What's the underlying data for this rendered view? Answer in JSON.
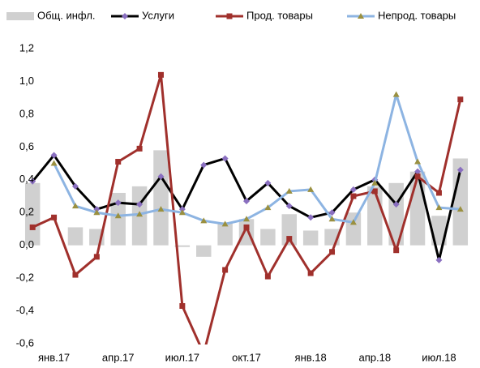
{
  "chart_data": {
    "type": "combo",
    "categories": [
      null,
      "янв.17",
      null,
      null,
      "апр.17",
      null,
      null,
      "июл.17",
      null,
      null,
      "окт.17",
      null,
      null,
      "янв.18",
      null,
      null,
      "апр.18",
      null,
      null,
      "июл.18",
      null
    ],
    "series": [
      {
        "name": "Общ. инфл.",
        "kind": "bar",
        "color": "#d0d0d0",
        "values": [
          0.38,
          null,
          0.11,
          0.1,
          0.32,
          0.36,
          0.58,
          -0.01,
          -0.07,
          0.14,
          0.16,
          0.1,
          0.19,
          0.09,
          0.1,
          0.2,
          0.36,
          0.38,
          0.45,
          0.18,
          0.53
        ]
      },
      {
        "name": "Услуги",
        "kind": "line",
        "color": "#000000",
        "marker": "diamond",
        "marker_color": "#8a6fc0",
        "values": [
          0.39,
          0.55,
          0.36,
          0.22,
          0.26,
          0.25,
          0.42,
          0.22,
          0.49,
          0.53,
          0.27,
          0.38,
          0.24,
          0.17,
          0.2,
          0.34,
          0.4,
          0.25,
          0.45,
          -0.09,
          0.46
        ]
      },
      {
        "name": "Прод. товары",
        "kind": "line",
        "color": "#a0302c",
        "marker": "square",
        "marker_color": "#a0302c",
        "values": [
          0.11,
          0.17,
          -0.18,
          -0.07,
          0.51,
          0.59,
          1.04,
          -0.37,
          -0.66,
          -0.15,
          0.11,
          -0.19,
          0.04,
          -0.17,
          -0.04,
          0.3,
          0.33,
          -0.03,
          0.42,
          0.32,
          0.89
        ]
      },
      {
        "name": "Непрод. товары",
        "kind": "line",
        "color": "#8db4e2",
        "marker": "triangle",
        "marker_color": "#9a9040",
        "values": [
          null,
          0.5,
          0.24,
          0.2,
          0.18,
          0.19,
          0.22,
          0.2,
          0.15,
          0.13,
          0.16,
          0.23,
          0.33,
          0.34,
          0.16,
          0.14,
          0.38,
          0.92,
          0.51,
          0.23,
          0.22
        ]
      }
    ],
    "ylim": [
      -0.6,
      1.2
    ],
    "yticks": [
      {
        "value": -0.6,
        "label": "-0,6"
      },
      {
        "value": -0.4,
        "label": "-0,4"
      },
      {
        "value": -0.2,
        "label": "-0,2"
      },
      {
        "value": 0,
        "label": "0,0"
      },
      {
        "value": 0.2,
        "label": "0,2"
      },
      {
        "value": 0.4,
        "label": "0,4"
      },
      {
        "value": 0.6,
        "label": "0,6"
      },
      {
        "value": 0.8,
        "label": "0,8"
      },
      {
        "value": 1.0,
        "label": "1,0"
      },
      {
        "value": 1.2,
        "label": "1,2"
      }
    ],
    "grid": false,
    "legend": "top"
  }
}
